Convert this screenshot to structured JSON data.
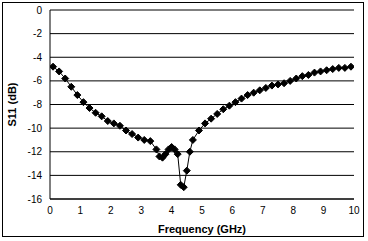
{
  "chart_data": {
    "type": "line",
    "x_label": "Frequency (GHz)",
    "y_label": "S11 (dB)",
    "x": [
      0.1,
      0.3,
      0.5,
      0.7,
      0.9,
      1.1,
      1.3,
      1.5,
      1.7,
      1.9,
      2.1,
      2.3,
      2.5,
      2.7,
      2.9,
      3.1,
      3.3,
      3.5,
      3.6,
      3.7,
      3.8,
      3.9,
      4.0,
      4.1,
      4.2,
      4.3,
      4.4,
      4.5,
      4.6,
      4.7,
      4.9,
      5.1,
      5.3,
      5.5,
      5.7,
      5.9,
      6.1,
      6.3,
      6.5,
      6.7,
      6.9,
      7.1,
      7.3,
      7.5,
      7.7,
      7.9,
      8.1,
      8.3,
      8.5,
      8.7,
      8.9,
      9.1,
      9.3,
      9.5,
      9.7,
      9.9
    ],
    "series": [
      {
        "name": "S11",
        "color": "#000000",
        "marker": "diamond",
        "line_style": "solid",
        "values": [
          -4.8,
          -5.2,
          -5.8,
          -6.5,
          -7.2,
          -7.8,
          -8.3,
          -8.7,
          -9.0,
          -9.4,
          -9.6,
          -9.8,
          -10.2,
          -10.5,
          -10.8,
          -11.0,
          -11.1,
          -11.8,
          -12.4,
          -12.5,
          -12.2,
          -11.8,
          -11.6,
          -11.8,
          -12.2,
          -14.8,
          -15.0,
          -13.6,
          -12.0,
          -11.0,
          -10.2,
          -9.6,
          -9.2,
          -8.8,
          -8.4,
          -8.1,
          -7.8,
          -7.5,
          -7.2,
          -7.0,
          -6.8,
          -6.6,
          -6.4,
          -6.3,
          -6.2,
          -6.0,
          -5.8,
          -5.6,
          -5.5,
          -5.3,
          -5.2,
          -5.1,
          -5.0,
          -4.9,
          -4.9,
          -4.8
        ]
      }
    ],
    "xlim": [
      0,
      10
    ],
    "xticks": [
      0,
      1,
      2,
      3,
      4,
      5,
      6,
      7,
      8,
      9,
      10
    ],
    "ylim": [
      -16,
      0
    ],
    "yticks": [
      -16,
      -14,
      -12,
      -10,
      -8,
      -6,
      -4,
      -2,
      0
    ],
    "grid": true
  }
}
